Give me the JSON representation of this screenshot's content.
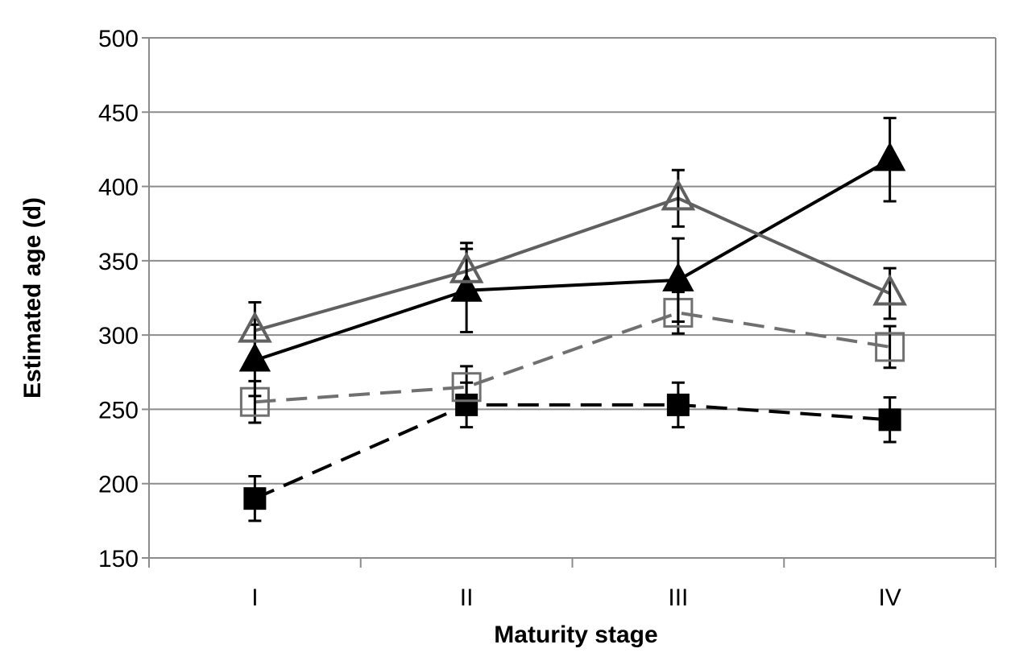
{
  "chart_data": {
    "type": "line",
    "title": "",
    "xlabel": "Maturity stage",
    "ylabel": "Estimated age (d)",
    "categories": [
      "I",
      "II",
      "III",
      "IV"
    ],
    "ylim": [
      150,
      500
    ],
    "yticks": [
      150,
      200,
      250,
      300,
      350,
      400,
      450,
      500
    ],
    "grid": true,
    "legend": "none",
    "series": [
      {
        "marker": "filled-triangle",
        "line": "solid",
        "color": "#000000",
        "values": [
          283,
          330,
          337,
          418
        ],
        "error": [
          24,
          28,
          28,
          28
        ]
      },
      {
        "marker": "open-triangle",
        "line": "solid",
        "color": "#606060",
        "values": [
          303,
          343,
          392,
          328
        ],
        "error": [
          19,
          19,
          19,
          17
        ]
      },
      {
        "marker": "open-square",
        "line": "dashed",
        "color": "#707070",
        "values": [
          255,
          265,
          315,
          292
        ],
        "error": [
          14,
          14,
          14,
          14
        ]
      },
      {
        "marker": "filled-square",
        "line": "dashed",
        "color": "#000000",
        "values": [
          190,
          253,
          253,
          243
        ],
        "error": [
          15,
          15,
          15,
          15
        ]
      }
    ]
  }
}
